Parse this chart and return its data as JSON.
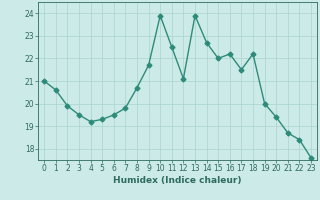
{
  "x": [
    0,
    1,
    2,
    3,
    4,
    5,
    6,
    7,
    8,
    9,
    10,
    11,
    12,
    13,
    14,
    15,
    16,
    17,
    18,
    19,
    20,
    21,
    22,
    23
  ],
  "y": [
    21.0,
    20.6,
    19.9,
    19.5,
    19.2,
    19.3,
    19.5,
    19.8,
    20.7,
    21.7,
    23.9,
    22.5,
    21.1,
    23.9,
    22.7,
    22.0,
    22.2,
    21.5,
    22.2,
    20.0,
    19.4,
    18.7,
    18.4,
    17.6
  ],
  "line_color": "#2e8b7a",
  "marker": "D",
  "marker_size": 2.5,
  "line_width": 1.0,
  "bg_color": "#cceae7",
  "grid_color": "#aad4d0",
  "label_color": "#2e6b60",
  "xlabel": "Humidex (Indice chaleur)",
  "ylim": [
    17.5,
    24.5
  ],
  "yticks": [
    18,
    19,
    20,
    21,
    22,
    23,
    24
  ],
  "xticks": [
    0,
    1,
    2,
    3,
    4,
    5,
    6,
    7,
    8,
    9,
    10,
    11,
    12,
    13,
    14,
    15,
    16,
    17,
    18,
    19,
    20,
    21,
    22,
    23
  ],
  "xlabel_fontsize": 6.5,
  "tick_fontsize": 5.5
}
